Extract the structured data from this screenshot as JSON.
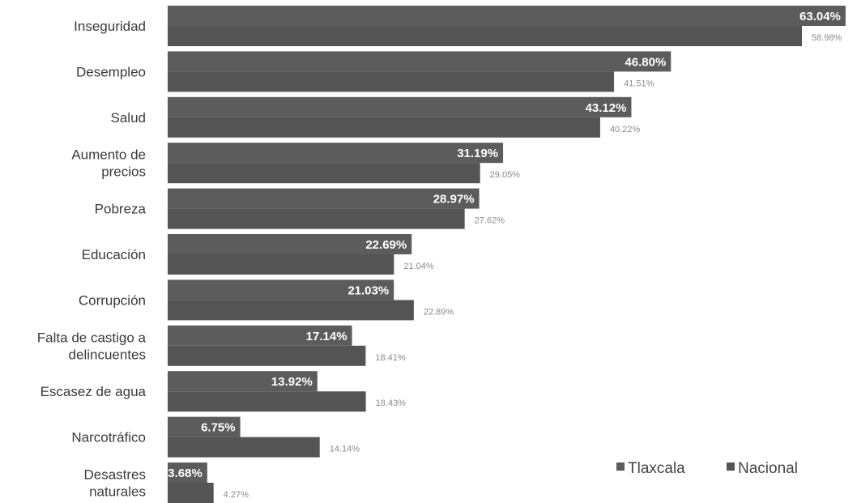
{
  "chart_data": {
    "type": "bar",
    "orientation": "horizontal",
    "title": "",
    "xlabel": "",
    "ylabel": "",
    "xlim": [
      0,
      70
    ],
    "grid": false,
    "legend_position": "bottom-right",
    "categories": [
      [
        "Inseguridad"
      ],
      [
        "Desempleo"
      ],
      [
        "Salud"
      ],
      [
        "Aumento de",
        "precios"
      ],
      [
        "Pobreza"
      ],
      [
        "Educación"
      ],
      [
        "Corrupción"
      ],
      [
        "Falta de castigo a",
        "delincuentes"
      ],
      [
        "Escasez de agua"
      ],
      [
        "Narcotráfico"
      ],
      [
        "Desastres",
        "naturales"
      ]
    ],
    "series": [
      {
        "name": "Tlaxcala",
        "color": "#5c5c5c",
        "values": [
          63.04,
          46.8,
          43.12,
          31.19,
          28.97,
          22.69,
          21.03,
          17.14,
          13.92,
          6.75,
          3.68
        ],
        "labels": [
          "63.04%",
          "46.80%",
          "43.12%",
          "31.19%",
          "28.97%",
          "22.69%",
          "21.03%",
          "17.14%",
          "13.92%",
          "6.75%",
          "3.68%"
        ]
      },
      {
        "name": "Nacional",
        "color": "#545454",
        "values": [
          58.98,
          41.51,
          40.22,
          29.05,
          27.62,
          21.04,
          22.89,
          18.41,
          18.43,
          14.14,
          4.27
        ],
        "labels": [
          "58.98%",
          "41.51%",
          "40.22%",
          "29.05%",
          "27.62%",
          "21.04%",
          "22.89%",
          "18.41%",
          "18.43%",
          "14.14%",
          "4.27%"
        ]
      }
    ]
  }
}
